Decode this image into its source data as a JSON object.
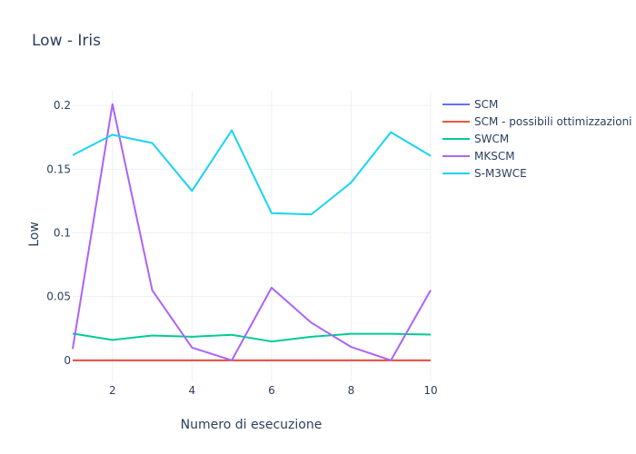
{
  "chart_data": {
    "type": "line",
    "title": "Low - Iris",
    "xlabel": "Numero di esecuzione",
    "ylabel": "Low",
    "x": [
      1,
      2,
      3,
      4,
      5,
      6,
      7,
      8,
      9,
      10
    ],
    "xlim": [
      1,
      10
    ],
    "ylim": [
      -0.0165,
      0.2115
    ],
    "xticks": [
      2,
      4,
      6,
      8,
      10
    ],
    "yticks": [
      0,
      0.05,
      0.1,
      0.15,
      0.2
    ],
    "ytick_labels": [
      "0",
      "0.05",
      "0.1",
      "0.15",
      "0.2"
    ],
    "grid": true,
    "legend_position": "right",
    "series": [
      {
        "name": "SCM",
        "color": "#636efa",
        "values": [
          0,
          0,
          0,
          0,
          0,
          0,
          0,
          0,
          0,
          0
        ]
      },
      {
        "name": "SCM - possibili ottimizzazioni",
        "color": "#ef553b",
        "values": [
          0,
          0,
          0,
          0,
          0,
          0,
          0,
          0,
          0,
          0
        ]
      },
      {
        "name": "SWCM",
        "color": "#00cc96",
        "values": [
          0.021,
          0.016,
          0.0195,
          0.0185,
          0.02,
          0.0148,
          0.0185,
          0.0208,
          0.0208,
          0.0202
        ]
      },
      {
        "name": "MKSCM",
        "color": "#ab63fa",
        "values": [
          0.009,
          0.201,
          0.055,
          0.01,
          0.0,
          0.057,
          0.0295,
          0.0105,
          0.0,
          0.055
        ]
      },
      {
        "name": "S-M3WCE",
        "color": "#19d3f3",
        "values": [
          0.161,
          0.177,
          0.1705,
          0.133,
          0.1805,
          0.1155,
          0.1145,
          0.1395,
          0.179,
          0.1605
        ]
      }
    ]
  }
}
